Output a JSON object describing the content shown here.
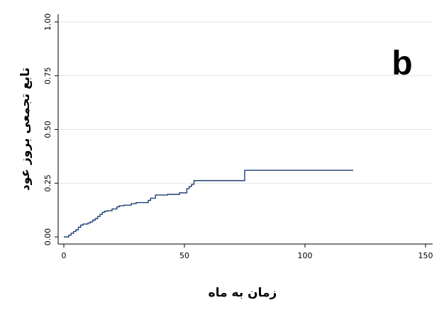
{
  "chart_data": {
    "type": "line",
    "panel_label": "b",
    "xlabel": "زمان به ماه",
    "ylabel": "تابع تجمعی بروز عود",
    "xlim": [
      0,
      150
    ],
    "ylim": [
      0,
      1
    ],
    "x_ticks": [
      0,
      50,
      100,
      150
    ],
    "x_tick_labels": [
      "0",
      "50",
      "100",
      "150"
    ],
    "y_ticks": [
      0,
      0.25,
      0.5,
      0.75,
      1
    ],
    "y_tick_labels": [
      "0.00",
      "0.25",
      "0.50",
      "0.75",
      "1.00"
    ],
    "grid": "horizontal",
    "line_color": "#1f3f74",
    "series": [
      {
        "step": true,
        "x": [
          0,
          2,
          3,
          4,
          5,
          6,
          7,
          8,
          10,
          11,
          12,
          13,
          14,
          15,
          16,
          17,
          18,
          20,
          22,
          23,
          25,
          28,
          30,
          35,
          36,
          38,
          43,
          48,
          51,
          52,
          53,
          54,
          74,
          75,
          120
        ],
        "y": [
          0.0,
          0.008,
          0.017,
          0.025,
          0.033,
          0.045,
          0.055,
          0.06,
          0.065,
          0.07,
          0.078,
          0.085,
          0.095,
          0.105,
          0.115,
          0.12,
          0.122,
          0.13,
          0.14,
          0.145,
          0.148,
          0.155,
          0.16,
          0.17,
          0.18,
          0.195,
          0.198,
          0.205,
          0.225,
          0.235,
          0.245,
          0.262,
          0.262,
          0.31,
          0.31
        ]
      }
    ]
  }
}
